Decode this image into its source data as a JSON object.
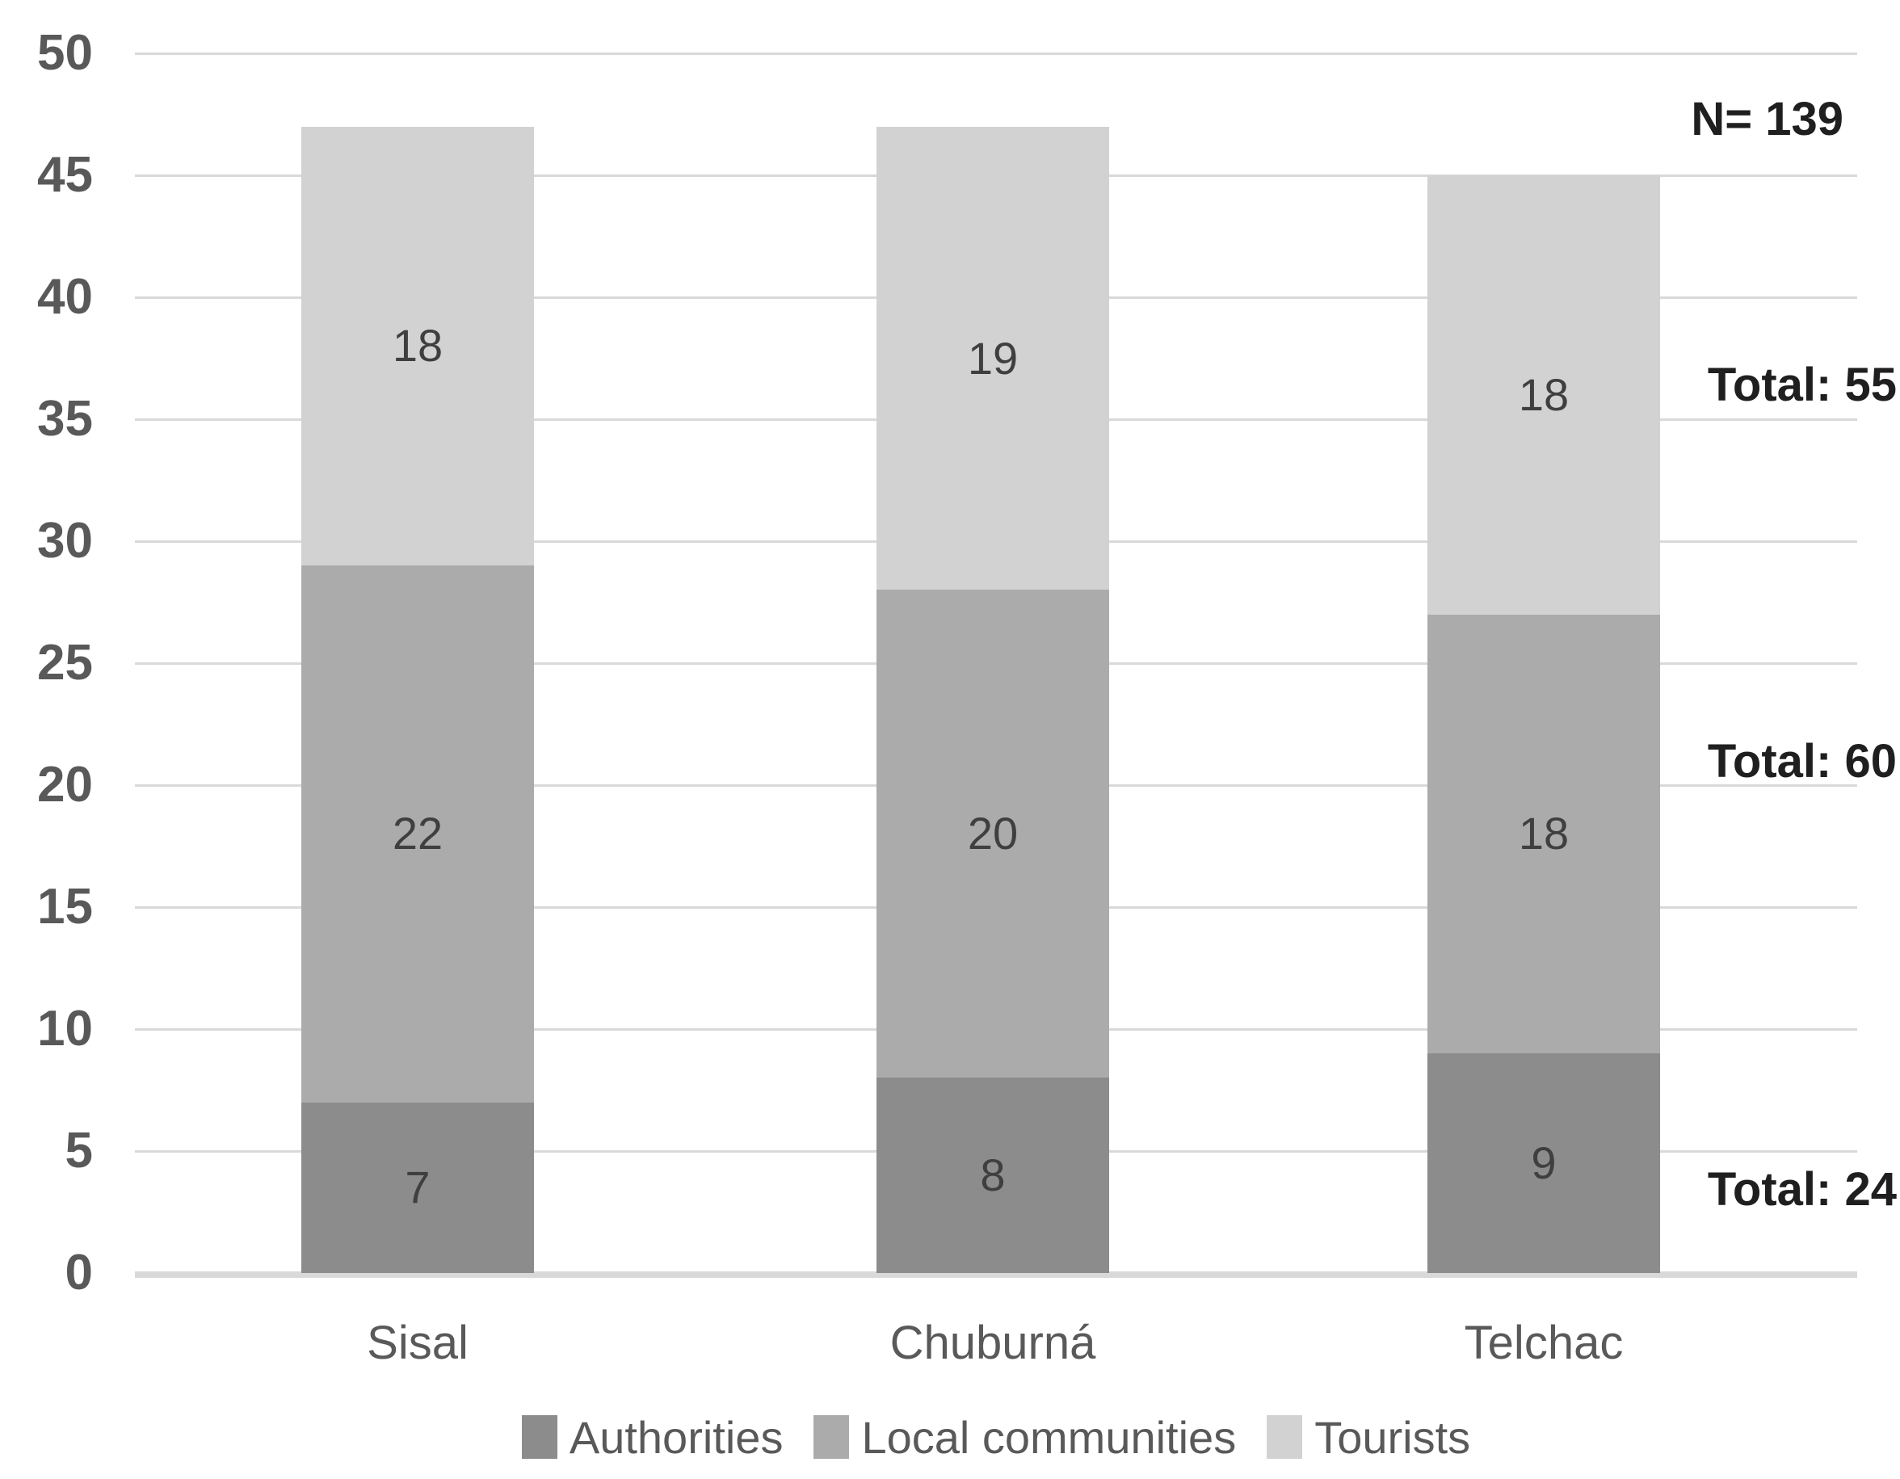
{
  "chart_data": {
    "type": "bar",
    "stacked": true,
    "title": "",
    "categories": [
      "Sisal",
      "Chuburná",
      "Telchac"
    ],
    "series": [
      {
        "name": "Authorities",
        "values": [
          7,
          8,
          9
        ],
        "color": "#8c8c8c"
      },
      {
        "name": "Local communities",
        "values": [
          22,
          20,
          18
        ],
        "color": "#ababab"
      },
      {
        "name": "Tourists",
        "values": [
          18,
          19,
          18
        ],
        "color": "#d2d2d2"
      }
    ],
    "category_totals": [
      47,
      47,
      45
    ],
    "annotations": {
      "n_label": "N= 139",
      "series_totals": [
        {
          "series": "Tourists",
          "label": "Total: 55"
        },
        {
          "series": "Local communities",
          "label": "Total: 60"
        },
        {
          "series": "Authorities",
          "label": "Total: 24"
        }
      ]
    },
    "y_axis": {
      "min": 0,
      "max": 50,
      "step": 5,
      "tick_labels": [
        "0",
        "5",
        "10",
        "15",
        "20",
        "25",
        "30",
        "35",
        "40",
        "45",
        "50"
      ]
    },
    "xlabel": "",
    "ylabel": "",
    "grid": true,
    "legend": {
      "position": "bottom",
      "entries": [
        "Authorities",
        "Local communities",
        "Tourists"
      ]
    },
    "colors": {
      "background": "#ffffff",
      "gridline": "#d9d9d9",
      "axis_line": "#d9d9d9",
      "tick_text": "#595959",
      "value_text": "#3f3f3f",
      "category_text": "#595959",
      "annotation_text": "#1f1f1f",
      "legend_text": "#595959"
    }
  }
}
